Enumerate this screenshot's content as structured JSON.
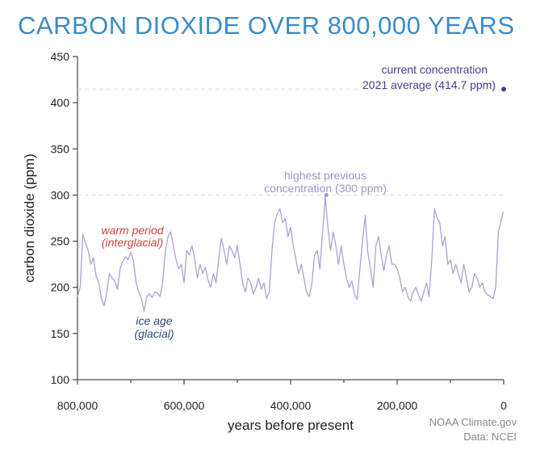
{
  "chart_data": {
    "type": "line",
    "title": "CARBON DIOXIDE OVER 800,000 YEARS",
    "xlabel": "years before present",
    "ylabel": "carbon dioxide (ppm)",
    "xlim": [
      800000,
      0
    ],
    "ylim": [
      100,
      450
    ],
    "x_ticks": [
      800000,
      600000,
      400000,
      200000,
      0
    ],
    "x_tick_labels": [
      "800,000",
      "600,000",
      "400,000",
      "200,000",
      "0"
    ],
    "y_ticks": [
      100,
      150,
      200,
      250,
      300,
      350,
      400,
      450
    ],
    "y_tick_labels": [
      "100",
      "150",
      "200",
      "250",
      "300",
      "350",
      "400",
      "450"
    ],
    "grid": false,
    "colors": {
      "line": "#a7a5d2",
      "title": "#3b8bc9",
      "warm": "#c8423f",
      "ice": "#2e4a7d",
      "current": "#4a3d8f",
      "highest": "#9b97cc"
    },
    "series": [
      {
        "values": [
          [
            800000,
            190
          ],
          [
            795000,
            200
          ],
          [
            790000,
            258
          ],
          [
            785000,
            248
          ],
          [
            780000,
            240
          ],
          [
            775000,
            225
          ],
          [
            770000,
            232
          ],
          [
            765000,
            212
          ],
          [
            760000,
            205
          ],
          [
            755000,
            187
          ],
          [
            750000,
            180
          ],
          [
            745000,
            195
          ],
          [
            740000,
            215
          ],
          [
            735000,
            210
          ],
          [
            730000,
            207
          ],
          [
            725000,
            198
          ],
          [
            720000,
            220
          ],
          [
            715000,
            228
          ],
          [
            710000,
            233
          ],
          [
            705000,
            230
          ],
          [
            700000,
            238
          ],
          [
            695000,
            229
          ],
          [
            690000,
            205
          ],
          [
            685000,
            195
          ],
          [
            680000,
            188
          ],
          [
            675000,
            174
          ],
          [
            670000,
            190
          ],
          [
            665000,
            193
          ],
          [
            660000,
            189
          ],
          [
            655000,
            195
          ],
          [
            650000,
            194
          ],
          [
            645000,
            190
          ],
          [
            640000,
            206
          ],
          [
            635000,
            240
          ],
          [
            630000,
            255
          ],
          [
            625000,
            260
          ],
          [
            620000,
            245
          ],
          [
            615000,
            230
          ],
          [
            610000,
            220
          ],
          [
            605000,
            225
          ],
          [
            600000,
            205
          ],
          [
            595000,
            240
          ],
          [
            590000,
            235
          ],
          [
            585000,
            245
          ],
          [
            580000,
            230
          ],
          [
            575000,
            210
          ],
          [
            570000,
            225
          ],
          [
            565000,
            215
          ],
          [
            560000,
            222
          ],
          [
            555000,
            208
          ],
          [
            550000,
            200
          ],
          [
            545000,
            215
          ],
          [
            540000,
            205
          ],
          [
            535000,
            230
          ],
          [
            530000,
            253
          ],
          [
            525000,
            240
          ],
          [
            520000,
            225
          ],
          [
            515000,
            245
          ],
          [
            510000,
            240
          ],
          [
            505000,
            232
          ],
          [
            500000,
            245
          ],
          [
            495000,
            225
          ],
          [
            490000,
            205
          ],
          [
            485000,
            195
          ],
          [
            480000,
            210
          ],
          [
            475000,
            205
          ],
          [
            470000,
            193
          ],
          [
            465000,
            200
          ],
          [
            460000,
            210
          ],
          [
            455000,
            198
          ],
          [
            450000,
            205
          ],
          [
            445000,
            188
          ],
          [
            440000,
            195
          ],
          [
            435000,
            240
          ],
          [
            430000,
            270
          ],
          [
            425000,
            280
          ],
          [
            420000,
            285
          ],
          [
            415000,
            270
          ],
          [
            410000,
            275
          ],
          [
            405000,
            255
          ],
          [
            400000,
            265
          ],
          [
            395000,
            245
          ],
          [
            390000,
            230
          ],
          [
            385000,
            215
          ],
          [
            380000,
            225
          ],
          [
            375000,
            210
          ],
          [
            370000,
            195
          ],
          [
            365000,
            190
          ],
          [
            360000,
            205
          ],
          [
            355000,
            235
          ],
          [
            350000,
            240
          ],
          [
            345000,
            220
          ],
          [
            340000,
            260
          ],
          [
            335000,
            298
          ],
          [
            330000,
            265
          ],
          [
            325000,
            240
          ],
          [
            320000,
            260
          ],
          [
            315000,
            245
          ],
          [
            310000,
            225
          ],
          [
            305000,
            245
          ],
          [
            300000,
            225
          ],
          [
            295000,
            210
          ],
          [
            290000,
            200
          ],
          [
            285000,
            207
          ],
          [
            280000,
            192
          ],
          [
            275000,
            187
          ],
          [
            270000,
            220
          ],
          [
            265000,
            250
          ],
          [
            260000,
            278
          ],
          [
            255000,
            238
          ],
          [
            250000,
            220
          ],
          [
            245000,
            200
          ],
          [
            240000,
            245
          ],
          [
            235000,
            255
          ],
          [
            230000,
            235
          ],
          [
            225000,
            218
          ],
          [
            220000,
            235
          ],
          [
            215000,
            245
          ],
          [
            210000,
            225
          ],
          [
            205000,
            225
          ],
          [
            200000,
            220
          ],
          [
            195000,
            210
          ],
          [
            190000,
            195
          ],
          [
            185000,
            200
          ],
          [
            180000,
            190
          ],
          [
            175000,
            185
          ],
          [
            170000,
            195
          ],
          [
            165000,
            200
          ],
          [
            160000,
            192
          ],
          [
            155000,
            185
          ],
          [
            150000,
            195
          ],
          [
            145000,
            205
          ],
          [
            140000,
            190
          ],
          [
            135000,
            230
          ],
          [
            130000,
            285
          ],
          [
            125000,
            275
          ],
          [
            120000,
            270
          ],
          [
            115000,
            245
          ],
          [
            110000,
            255
          ],
          [
            105000,
            225
          ],
          [
            100000,
            230
          ],
          [
            95000,
            215
          ],
          [
            90000,
            225
          ],
          [
            85000,
            215
          ],
          [
            80000,
            205
          ],
          [
            75000,
            225
          ],
          [
            70000,
            210
          ],
          [
            65000,
            195
          ],
          [
            60000,
            200
          ],
          [
            55000,
            215
          ],
          [
            50000,
            210
          ],
          [
            45000,
            200
          ],
          [
            40000,
            205
          ],
          [
            35000,
            195
          ],
          [
            30000,
            192
          ],
          [
            25000,
            190
          ],
          [
            20000,
            188
          ],
          [
            15000,
            200
          ],
          [
            10000,
            260
          ],
          [
            5000,
            272
          ],
          [
            2000,
            280
          ],
          [
            200,
            282
          ]
        ]
      }
    ],
    "annotations": {
      "current": {
        "line1": "current concentration",
        "line2": "2021 average (414.7 ppm)",
        "x": 0,
        "y": 414.7
      },
      "highest": {
        "line1": "highest previous",
        "line2": "concentration (300 ppm)",
        "x": 333000,
        "y": 300
      },
      "warm": {
        "line1": "warm period",
        "line2": "(interglacial)"
      },
      "ice": {
        "line1": "ice age",
        "line2": "(glacial)"
      }
    },
    "credit": {
      "line1": "NOAA Climate.gov",
      "line2": "Data: NCEI"
    }
  }
}
